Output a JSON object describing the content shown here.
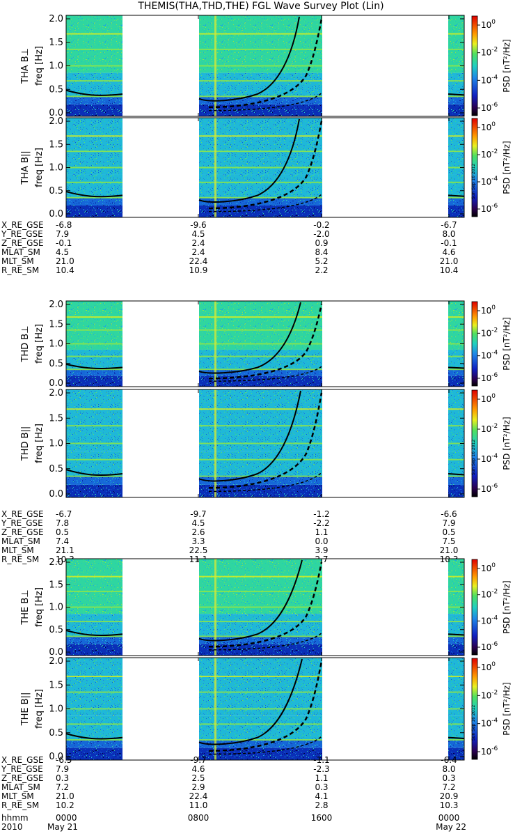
{
  "title": "THEMIS(THA,THD,THE) FGL Wave Survey Plot (Lin)",
  "colorbar": {
    "label_prefix": "PSD",
    "label_unit": "[nT²/Hz]",
    "ticks": [
      "10^0",
      "10^-2",
      "10^-4",
      "10^-6"
    ],
    "stamp": "Sun Sep 16 2012"
  },
  "chart_data": [
    {
      "type": "heatmap",
      "probe": "THA",
      "panels": [
        {
          "component": "THA B⊥",
          "ylabel": "freq [Hz]"
        },
        {
          "component": "THA B||",
          "ylabel": "freq [Hz]"
        }
      ],
      "yticks": [
        "0.0",
        "0.5",
        "1.0",
        "1.5",
        "2.0"
      ],
      "ylim": [
        0,
        2
      ],
      "ephemeris": [
        {
          "label": "X_RE_GSE",
          "values": [
            "-6.8",
            "-9.6",
            "-0.2",
            "-6.7"
          ]
        },
        {
          "label": "Y_RE_GSE",
          "values": [
            "7.9",
            "4.5",
            "-2.0",
            "8.0"
          ]
        },
        {
          "label": "Z_RE_GSE",
          "values": [
            "-0.1",
            "2.4",
            "0.9",
            "-0.1"
          ]
        },
        {
          "label": "MLAT_SM",
          "values": [
            "4.5",
            "2.4",
            "8.4",
            "4.6"
          ]
        },
        {
          "label": "MLT_SM",
          "values": [
            "21.0",
            "22.4",
            "5.2",
            "21.0"
          ]
        },
        {
          "label": "R_RE_SM",
          "values": [
            "10.4",
            "10.9",
            "2.2",
            "10.4"
          ]
        }
      ]
    },
    {
      "type": "heatmap",
      "probe": "THD",
      "panels": [
        {
          "component": "THD B⊥",
          "ylabel": "freq [Hz]"
        },
        {
          "component": "THD B||",
          "ylabel": "freq [Hz]"
        }
      ],
      "yticks": [
        "0.0",
        "0.5",
        "1.0",
        "1.5",
        "2.0"
      ],
      "ylim": [
        0,
        2
      ],
      "ephemeris": [
        {
          "label": "X_RE_GSE",
          "values": [
            "-6.7",
            "-9.7",
            "-1.2",
            "-6.6"
          ]
        },
        {
          "label": "Y_RE_GSE",
          "values": [
            "7.8",
            "4.5",
            "-2.2",
            "7.9"
          ]
        },
        {
          "label": "Z_RE_GSE",
          "values": [
            "0.5",
            "2.6",
            "1.1",
            "0.5"
          ]
        },
        {
          "label": "MLAT_SM",
          "values": [
            "7.4",
            "3.3",
            "0.0",
            "7.5"
          ]
        },
        {
          "label": "MLT_SM",
          "values": [
            "21.1",
            "22.5",
            "3.9",
            "21.0"
          ]
        },
        {
          "label": "R_RE_SM",
          "values": [
            "10.3",
            "11.1",
            "2.7",
            "10.3"
          ]
        }
      ]
    },
    {
      "type": "heatmap",
      "probe": "THE",
      "panels": [
        {
          "component": "THE B⊥",
          "ylabel": "freq [Hz]"
        },
        {
          "component": "THE B||",
          "ylabel": "freq [Hz]"
        }
      ],
      "yticks": [
        "0.0",
        "0.5",
        "1.0",
        "1.5",
        "2.0"
      ],
      "ylim": [
        0,
        2
      ],
      "ephemeris": [
        {
          "label": "X_RE_GSE",
          "values": [
            "-6.5",
            "-9.7",
            "-1.1",
            "-6.4"
          ]
        },
        {
          "label": "Y_RE_GSE",
          "values": [
            "7.9",
            "4.6",
            "-2.3",
            "8.0"
          ]
        },
        {
          "label": "Z_RE_GSE",
          "values": [
            "0.3",
            "2.5",
            "1.1",
            "0.3"
          ]
        },
        {
          "label": "MLAT_SM",
          "values": [
            "7.2",
            "2.9",
            "0.3",
            "7.2"
          ]
        },
        {
          "label": "MLT_SM",
          "values": [
            "21.0",
            "22.4",
            "4.1",
            "20.9"
          ]
        },
        {
          "label": "R_RE_SM",
          "values": [
            "10.2",
            "11.0",
            "2.8",
            "10.3"
          ]
        }
      ]
    }
  ],
  "time_axis": {
    "label_row1": "hhmm",
    "label_row2": "2010",
    "ticks_row1": [
      "0000",
      "0800",
      "1600",
      "0000"
    ],
    "ticks_row2": [
      "May 21",
      "",
      "",
      "May 22"
    ]
  }
}
